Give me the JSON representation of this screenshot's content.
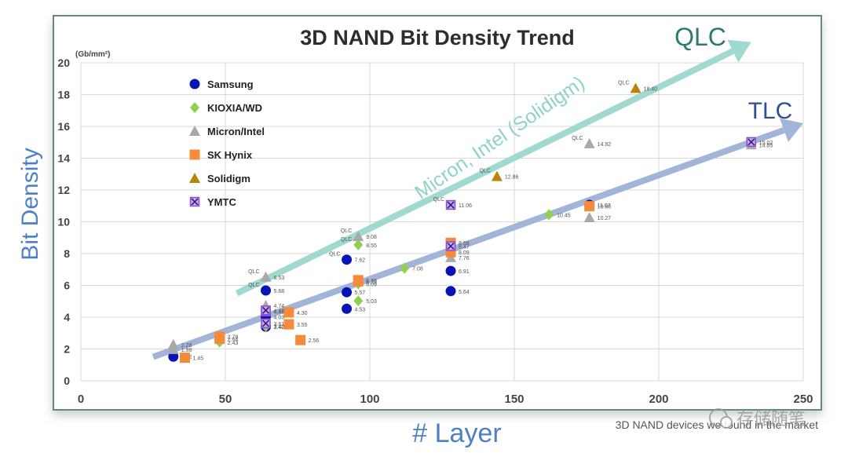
{
  "chart_data": {
    "type": "scatter",
    "title": "3D NAND Bit Density Trend",
    "xlabel": "# Layer",
    "ylabel": "Bit Density",
    "yunit": "(Gb/mm²)",
    "xlim": [
      0,
      250
    ],
    "ylim": [
      0,
      20
    ],
    "xticks": [
      0,
      50,
      100,
      150,
      200,
      250
    ],
    "yticks": [
      0,
      2,
      4,
      6,
      8,
      10,
      12,
      14,
      16,
      18,
      20
    ],
    "grid": true,
    "legend_position": "top-left",
    "caption": "3D NAND devices we found in the market",
    "watermark": "存储随笔",
    "trend_labels": {
      "qlc": "QLC",
      "tlc": "TLC",
      "qlc_line_annotation": "Micron, Intel (Solidigm)"
    },
    "trend_lines": [
      {
        "name": "QLC",
        "color": "#9fd9cf",
        "start": [
          54,
          5.5
        ],
        "end": [
          232,
          21.3
        ]
      },
      {
        "name": "TLC",
        "color": "#a2b5d8",
        "start": [
          25,
          1.5
        ],
        "end": [
          250,
          16.2
        ]
      }
    ],
    "series": [
      {
        "name": "Samsung",
        "marker": "circle",
        "color": "#0a14b4",
        "points": [
          {
            "x": 32,
            "y": 1.52,
            "label": "1.52"
          },
          {
            "x": 64,
            "y": 3.4,
            "label": "3.40"
          },
          {
            "x": 64,
            "y": 4.03,
            "label": "4.03"
          },
          {
            "x": 64,
            "y": 5.68,
            "label": "5.68",
            "qlc": true
          },
          {
            "x": 92,
            "y": 4.53,
            "label": "4.53"
          },
          {
            "x": 92,
            "y": 5.57,
            "label": "5.57"
          },
          {
            "x": 92,
            "y": 7.62,
            "label": "7.62",
            "qlc": true
          },
          {
            "x": 128,
            "y": 5.64,
            "label": "5.64"
          },
          {
            "x": 128,
            "y": 6.91,
            "label": "6.91"
          },
          {
            "x": 176,
            "y": 11.07,
            "label": "11.07"
          }
        ]
      },
      {
        "name": "KIOXIA/WD",
        "marker": "diamond",
        "color": "#8fd14f",
        "points": [
          {
            "x": 48,
            "y": 2.43,
            "label": "2.43"
          },
          {
            "x": 64,
            "y": 3.42,
            "label": "3.42"
          },
          {
            "x": 96,
            "y": 5.03,
            "label": "5.03"
          },
          {
            "x": 96,
            "y": 6.09,
            "label": "6.09"
          },
          {
            "x": 96,
            "y": 8.55,
            "label": "8.55",
            "qlc": true
          },
          {
            "x": 112,
            "y": 7.08,
            "label": "7.08"
          },
          {
            "x": 162,
            "y": 10.45,
            "label": "10.45"
          }
        ]
      },
      {
        "name": "Micron/Intel",
        "marker": "triangle",
        "color": "#a9a9a9",
        "points": [
          {
            "x": 32,
            "y": 2.28,
            "label": "2.28"
          },
          {
            "x": 32,
            "y": 1.98,
            "label": "1.98"
          },
          {
            "x": 64,
            "y": 4.74,
            "label": "4.74"
          },
          {
            "x": 64,
            "y": 6.53,
            "label": "6.53",
            "qlc": true
          },
          {
            "x": 96,
            "y": 9.08,
            "label": "9.08",
            "qlc": true
          },
          {
            "x": 128,
            "y": 7.76,
            "label": "7.76"
          },
          {
            "x": 176,
            "y": 10.27,
            "label": "10.27"
          },
          {
            "x": 176,
            "y": 14.92,
            "label": "14.92",
            "qlc": true
          },
          {
            "x": 232,
            "y": 14.85,
            "label": "14.85"
          }
        ]
      },
      {
        "name": "SK Hynix",
        "marker": "square",
        "color": "#f58a3a",
        "points": [
          {
            "x": 36,
            "y": 1.45,
            "label": "1.45"
          },
          {
            "x": 48,
            "y": 2.64,
            "label": "2.64"
          },
          {
            "x": 48,
            "y": 2.78,
            "label": "2.78"
          },
          {
            "x": 72,
            "y": 3.55,
            "label": "3.55"
          },
          {
            "x": 72,
            "y": 4.3,
            "label": "4.30"
          },
          {
            "x": 76,
            "y": 2.56,
            "label": "2.56"
          },
          {
            "x": 96,
            "y": 6.25,
            "label": "6.25"
          },
          {
            "x": 96,
            "y": 6.33,
            "label": "6.33"
          },
          {
            "x": 128,
            "y": 8.09,
            "label": "8.09"
          },
          {
            "x": 128,
            "y": 8.68,
            "label": "8.68"
          },
          {
            "x": 176,
            "y": 10.98,
            "label": "10.98"
          }
        ]
      },
      {
        "name": "Solidigm",
        "marker": "triangle",
        "color": "#b8860b",
        "points": [
          {
            "x": 144,
            "y": 12.86,
            "label": "12.86",
            "qlc": true
          },
          {
            "x": 192,
            "y": 18.4,
            "label": "18.40",
            "qlc": true
          }
        ]
      },
      {
        "name": "YMTC",
        "marker": "xsquare",
        "color": "#8a4fd0",
        "points": [
          {
            "x": 64,
            "y": 4.36,
            "label": "4.36"
          },
          {
            "x": 64,
            "y": 4.43,
            "label": "4.43"
          },
          {
            "x": 64,
            "y": 3.61,
            "label": "3.61"
          },
          {
            "x": 128,
            "y": 8.47,
            "label": "8.47"
          },
          {
            "x": 128,
            "y": 11.06,
            "label": "11.06",
            "qlc": true
          },
          {
            "x": 232,
            "y": 15.02,
            "label": "15.02"
          }
        ]
      }
    ]
  }
}
